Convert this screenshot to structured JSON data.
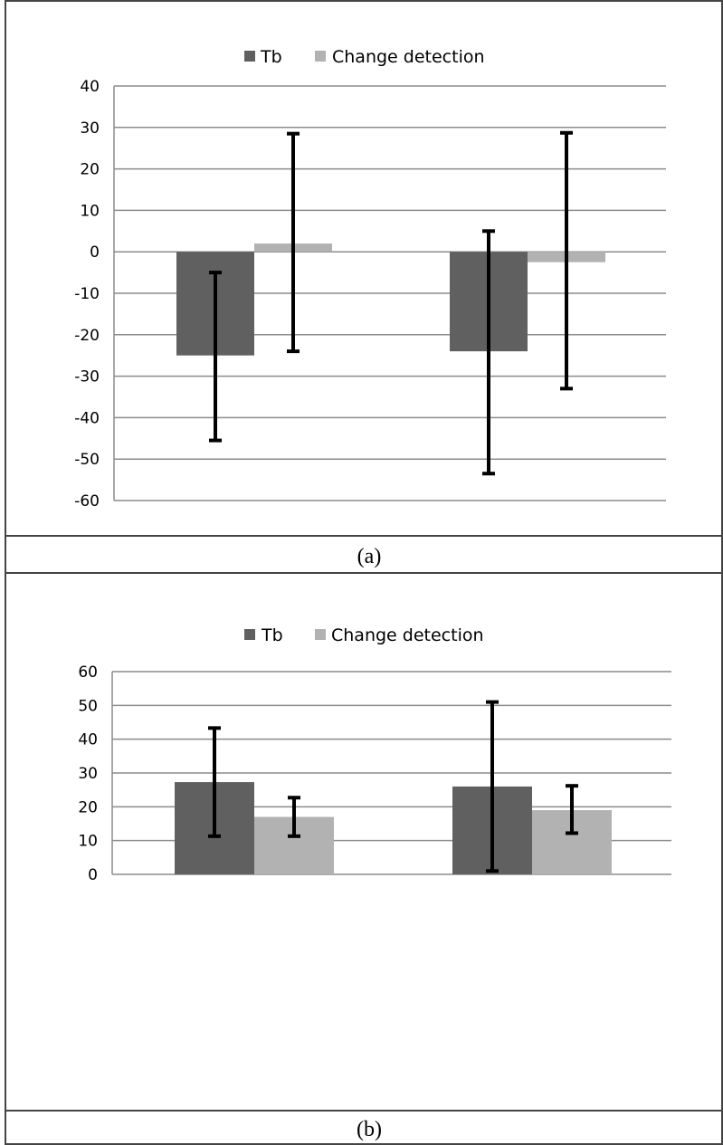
{
  "colors": {
    "tb": "#606060",
    "change_detection": "#b2b2b2",
    "grid": "#8c8c8c",
    "error_bar": "#000000",
    "border": "#444444"
  },
  "chart_data": [
    {
      "type": "bar",
      "panel": "(a)",
      "caption": "(a)",
      "categories": [
        "",
        ""
      ],
      "series": [
        {
          "name": "Tb",
          "values": [
            -25,
            -24
          ],
          "error_low": [
            -45.5,
            -53.5
          ],
          "error_high": [
            -5,
            5
          ]
        },
        {
          "name": "Change detection",
          "values": [
            2,
            -2.5
          ],
          "error_low": [
            -24,
            -33
          ],
          "error_high": [
            28.5,
            28.7
          ]
        }
      ],
      "ylim": [
        -60,
        40
      ],
      "yticks": [
        40,
        30,
        20,
        10,
        0,
        -10,
        -20,
        -30,
        -40,
        -50,
        -60
      ],
      "ytick_labels": [
        "40",
        "30",
        "20",
        "10",
        "0",
        "-10",
        "-20",
        "-30",
        "-40",
        "-50",
        "-60"
      ],
      "grid": true,
      "legend": "top-center",
      "xlabel": "",
      "ylabel": ""
    },
    {
      "type": "bar",
      "panel": "(b)",
      "caption": "(b)",
      "categories": [
        "",
        ""
      ],
      "series": [
        {
          "name": "Tb",
          "values": [
            27.3,
            26
          ],
          "error_low": [
            11.3,
            1
          ],
          "error_high": [
            43.3,
            51
          ]
        },
        {
          "name": "Change detection",
          "values": [
            17,
            19
          ],
          "error_low": [
            11.3,
            12.2
          ],
          "error_high": [
            22.7,
            26.2
          ]
        }
      ],
      "ylim": [
        0,
        60
      ],
      "yticks": [
        60,
        50,
        40,
        30,
        20,
        10,
        0
      ],
      "ytick_labels": [
        "60",
        "50",
        "40",
        "30",
        "20",
        "10",
        "0"
      ],
      "grid": true,
      "legend": "top-center",
      "xlabel": "",
      "ylabel": ""
    }
  ]
}
